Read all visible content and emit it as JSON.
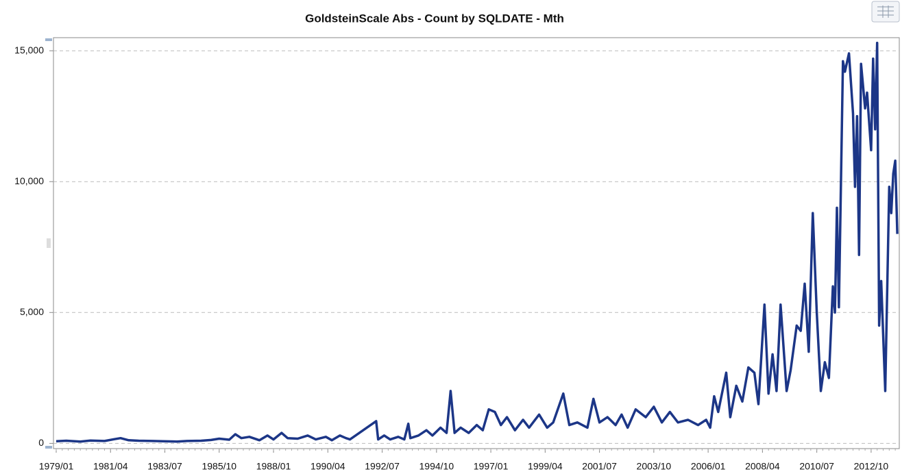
{
  "chart_data": {
    "type": "line",
    "title": "GoldsteinScale Abs - Count by SQLDATE - Mth",
    "color": "#1c3687",
    "grid": true,
    "xlim": [
      "1979/01",
      "2013/12"
    ],
    "ylim": [
      -200,
      15500
    ],
    "xticks": [
      "1979/01",
      "1981/04",
      "1983/07",
      "1985/10",
      "1988/01",
      "1990/04",
      "1992/07",
      "1994/10",
      "1997/01",
      "1999/04",
      "2001/07",
      "2003/10",
      "2006/01",
      "2008/04",
      "2010/07",
      "2012/10"
    ],
    "yticks": [
      0,
      {
        "value": 5000,
        "label": "5,000"
      },
      {
        "value": 10000,
        "label": "10,000"
      },
      {
        "value": 15000,
        "label": "15,000"
      }
    ],
    "x": [
      "1979/01",
      "1979/06",
      "1980/01",
      "1980/06",
      "1981/01",
      "1981/06",
      "1981/09",
      "1982/01",
      "1982/06",
      "1983/01",
      "1983/06",
      "1984/01",
      "1984/06",
      "1985/01",
      "1985/06",
      "1985/10",
      "1986/03",
      "1986/06",
      "1986/09",
      "1987/01",
      "1987/06",
      "1987/10",
      "1988/01",
      "1988/05",
      "1988/08",
      "1989/01",
      "1989/06",
      "1989/10",
      "1990/03",
      "1990/06",
      "1990/10",
      "1991/01",
      "1991/03",
      "1992/04",
      "1992/05",
      "1992/08",
      "1992/11",
      "1993/03",
      "1993/06",
      "1993/08",
      "1993/09",
      "1994/01",
      "1994/05",
      "1994/08",
      "1994/12",
      "1995/03",
      "1995/05",
      "1995/07",
      "1995/10",
      "1996/02",
      "1996/06",
      "1996/09",
      "1996/12",
      "1997/03",
      "1997/06",
      "1997/09",
      "1998/01",
      "1998/05",
      "1998/08",
      "1999/01",
      "1999/05",
      "1999/08",
      "2000/01",
      "2000/04",
      "2000/08",
      "2001/01",
      "2001/04",
      "2001/07",
      "2001/11",
      "2002/03",
      "2002/06",
      "2002/09",
      "2003/01",
      "2003/06",
      "2003/10",
      "2004/02",
      "2004/06",
      "2004/10",
      "2005/03",
      "2005/08",
      "2005/12",
      "2006/02",
      "2006/04",
      "2006/06",
      "2006/10",
      "2006/12",
      "2007/03",
      "2007/06",
      "2007/09",
      "2007/12",
      "2008/02",
      "2008/05",
      "2008/07",
      "2008/09",
      "2008/11",
      "2009/01",
      "2009/04",
      "2009/06",
      "2009/09",
      "2009/11",
      "2010/01",
      "2010/03",
      "2010/05",
      "2010/07",
      "2010/09",
      "2010/11",
      "2011/01",
      "2011/03",
      "2011/04",
      "2011/05",
      "2011/06",
      "2011/08",
      "2011/09",
      "2011/11",
      "2012/01",
      "2012/02",
      "2012/03",
      "2012/04",
      "2012/05",
      "2012/07",
      "2012/08",
      "2012/10",
      "2012/11",
      "2012/12",
      "2013/01",
      "2013/02",
      "2013/03",
      "2013/05",
      "2013/07",
      "2013/08",
      "2013/09",
      "2013/10",
      "2013/11"
    ],
    "values": [
      80,
      100,
      70,
      110,
      90,
      160,
      200,
      120,
      100,
      90,
      80,
      70,
      90,
      100,
      130,
      180,
      140,
      350,
      200,
      250,
      120,
      300,
      150,
      400,
      200,
      180,
      300,
      150,
      250,
      120,
      300,
      200,
      150,
      850,
      150,
      300,
      150,
      250,
      150,
      750,
      200,
      300,
      500,
      300,
      600,
      400,
      2000,
      400,
      600,
      400,
      700,
      500,
      1300,
      1200,
      700,
      1000,
      500,
      900,
      600,
      1100,
      600,
      800,
      1900,
      700,
      800,
      600,
      1700,
      800,
      1000,
      700,
      1100,
      600,
      1300,
      1000,
      1400,
      800,
      1200,
      800,
      900,
      700,
      900,
      600,
      1800,
      1200,
      2700,
      1000,
      2200,
      1600,
      2900,
      2700,
      1500,
      5300,
      1900,
      3400,
      2000,
      5300,
      2000,
      2800,
      4500,
      4300,
      6100,
      3500,
      8800,
      5000,
      2000,
      3100,
      2500,
      6000,
      5000,
      9000,
      5200,
      14600,
      14200,
      14900,
      12600,
      9800,
      12500,
      7200,
      14500,
      12800,
      13400,
      11200,
      14700,
      12000,
      15300,
      4500,
      6200,
      2000,
      9800,
      8800,
      10300,
      10800,
      8000
    ]
  }
}
